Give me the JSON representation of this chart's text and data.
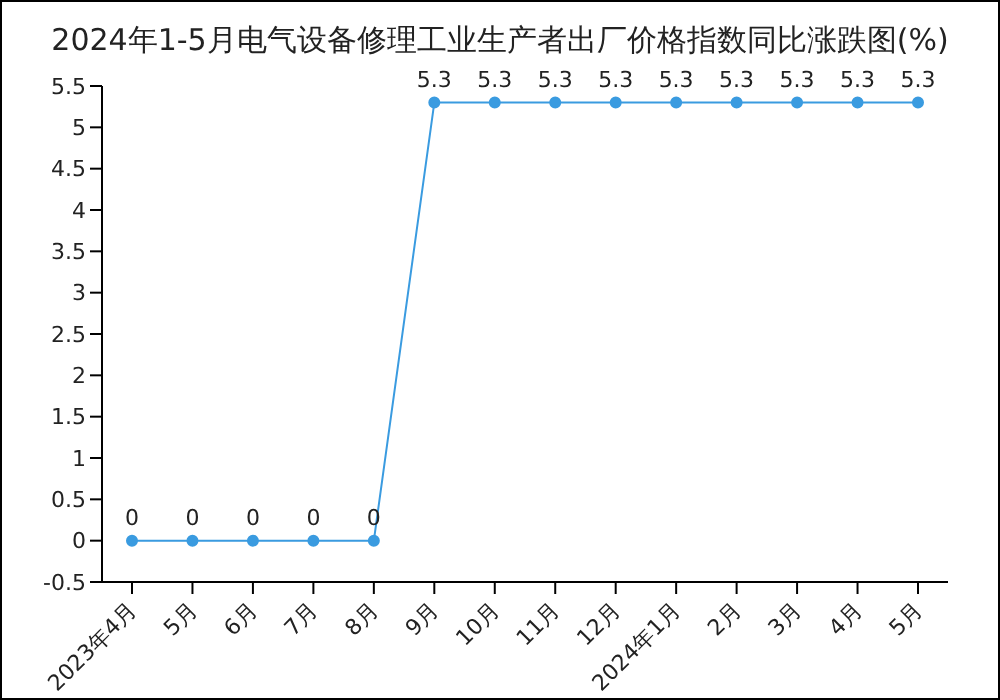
{
  "chart_data": {
    "type": "line",
    "title": "2024年1-5月电气设备修理工业生产者出厂价格指数同比涨跌图(%)",
    "categories": [
      "2023年4月",
      "5月",
      "6月",
      "7月",
      "8月",
      "9月",
      "10月",
      "11月",
      "12月",
      "2024年1月",
      "2月",
      "3月",
      "4月",
      "5月"
    ],
    "series": [
      {
        "color": "#3a9be0",
        "values": [
          0,
          0,
          0,
          0,
          0,
          5.3,
          5.3,
          5.3,
          5.3,
          5.3,
          5.3,
          5.3,
          5.3,
          5.3
        ]
      }
    ],
    "ylim": [
      -0.5,
      5.5
    ],
    "yticks": [
      -0.5,
      0,
      0.5,
      1,
      1.5,
      2,
      2.5,
      3,
      3.5,
      4,
      4.5,
      5,
      5.5
    ],
    "grid": false,
    "legend": false,
    "marker": "circle",
    "line_style": "solid",
    "data_labels": true
  }
}
